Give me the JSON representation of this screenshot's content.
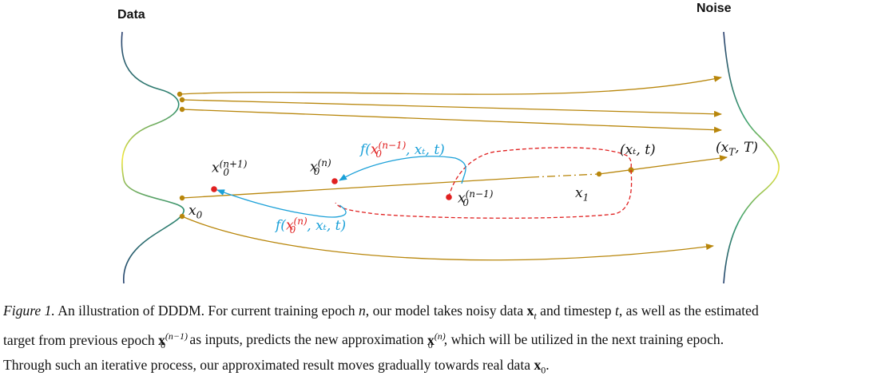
{
  "headers": {
    "data_label": "Data",
    "noise_label": "Noise"
  },
  "labels": {
    "x0_next": {
      "base": "x",
      "sup": "(n+1)",
      "sub": "0"
    },
    "x0_cur": {
      "base": "x",
      "sup": "(n)",
      "sub": "0"
    },
    "x0_prev": {
      "base": "x",
      "sup": "(n−1)",
      "sub": "0"
    },
    "xt_t": "(xₜ, t)",
    "xT_T": "(x_T, T)",
    "x1": {
      "base": "x",
      "sub": "1"
    },
    "x0": {
      "base": "x",
      "sub": "0"
    },
    "f_prev": {
      "pre": "f(",
      "x": "x",
      "sup": "(n−1)",
      "sub": "0",
      "post": ", xₜ, t)"
    },
    "f_cur": {
      "pre": "f(",
      "x": "x",
      "sup": "(n)",
      "sub": "0",
      "post": ", xₜ, t)"
    }
  },
  "colors": {
    "trajectory": "#b8860b",
    "blue_arrow": "#1aa0d8",
    "red_dashed": "#e02020",
    "point_red": "#e02020"
  },
  "caption": {
    "figure_no": "Figure 1.",
    "line1_a": "An illustration of DDDM. For current training epoch ",
    "line1_n": "n",
    "line1_b": ", our model takes noisy data ",
    "line1_x": "x",
    "line1_xsub": "t",
    "line1_c": " and timestep ",
    "line1_t": "t",
    "line1_d": ", as well as the estimated",
    "line2_a": "target from previous epoch ",
    "line2_x": "x",
    "line2_sup": "(n−1)",
    "line2_sub": "0",
    "line2_b": " as inputs, predicts the new approximation ",
    "line2_x2": "x",
    "line2_sup2": "(n)",
    "line2_sub2": "0",
    "line2_c": ", which will be utilized in the next training epoch.",
    "line3_a": "Through such an iterative process, our approximated result moves gradually towards real data ",
    "line3_x": "x",
    "line3_sub": "0",
    "line3_b": "."
  }
}
